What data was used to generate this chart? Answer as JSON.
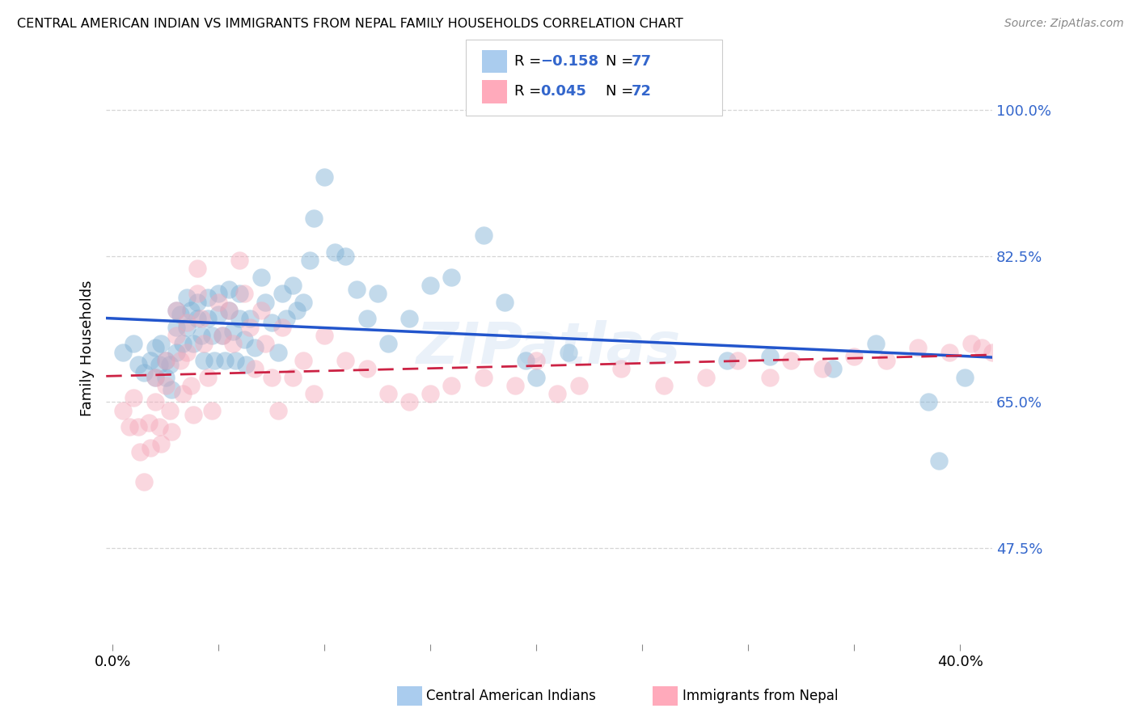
{
  "title": "CENTRAL AMERICAN INDIAN VS IMMIGRANTS FROM NEPAL FAMILY HOUSEHOLDS CORRELATION CHART",
  "source": "Source: ZipAtlas.com",
  "ylabel": "Family Households",
  "ytick_values": [
    0.475,
    0.65,
    0.825,
    1.0
  ],
  "ytick_labels": [
    "47.5%",
    "65.0%",
    "82.5%",
    "100.0%"
  ],
  "xtick_values": [
    0.0,
    0.05,
    0.1,
    0.15,
    0.2,
    0.25,
    0.3,
    0.35,
    0.4
  ],
  "xtick_labels_visible": [
    "0.0%",
    "",
    "",
    "",
    "",
    "",
    "",
    "",
    "40.0%"
  ],
  "xlim": [
    -0.003,
    0.415
  ],
  "ylim": [
    0.36,
    1.07
  ],
  "blue_r": "-0.158",
  "blue_n": "77",
  "pink_r": "0.045",
  "pink_n": "72",
  "blue_scatter_color": "#7BAFD4",
  "pink_scatter_color": "#F4A7B9",
  "blue_line_color": "#2255CC",
  "pink_line_color": "#CC2244",
  "watermark_color": "#C5D8EE",
  "grid_color": "#CCCCCC",
  "blue_x": [
    0.005,
    0.01,
    0.012,
    0.015,
    0.018,
    0.02,
    0.02,
    0.022,
    0.023,
    0.025,
    0.025,
    0.027,
    0.028,
    0.03,
    0.03,
    0.03,
    0.032,
    0.033,
    0.035,
    0.035,
    0.037,
    0.038,
    0.04,
    0.04,
    0.042,
    0.043,
    0.045,
    0.045,
    0.047,
    0.048,
    0.05,
    0.05,
    0.052,
    0.053,
    0.055,
    0.055,
    0.057,
    0.058,
    0.06,
    0.06,
    0.062,
    0.063,
    0.065,
    0.067,
    0.07,
    0.072,
    0.075,
    0.078,
    0.08,
    0.082,
    0.085,
    0.087,
    0.09,
    0.093,
    0.095,
    0.1,
    0.105,
    0.11,
    0.115,
    0.12,
    0.125,
    0.13,
    0.14,
    0.15,
    0.16,
    0.175,
    0.185,
    0.195,
    0.2,
    0.215,
    0.29,
    0.31,
    0.34,
    0.36,
    0.385,
    0.39,
    0.402
  ],
  "blue_y": [
    0.71,
    0.72,
    0.695,
    0.685,
    0.7,
    0.715,
    0.68,
    0.695,
    0.72,
    0.7,
    0.68,
    0.695,
    0.665,
    0.76,
    0.74,
    0.71,
    0.755,
    0.72,
    0.775,
    0.74,
    0.76,
    0.72,
    0.77,
    0.75,
    0.73,
    0.7,
    0.775,
    0.75,
    0.73,
    0.7,
    0.78,
    0.755,
    0.73,
    0.7,
    0.785,
    0.76,
    0.735,
    0.7,
    0.78,
    0.75,
    0.725,
    0.695,
    0.75,
    0.715,
    0.8,
    0.77,
    0.745,
    0.71,
    0.78,
    0.75,
    0.79,
    0.76,
    0.77,
    0.82,
    0.87,
    0.92,
    0.83,
    0.825,
    0.785,
    0.75,
    0.78,
    0.72,
    0.75,
    0.79,
    0.8,
    0.85,
    0.77,
    0.7,
    0.68,
    0.71,
    0.7,
    0.705,
    0.69,
    0.72,
    0.65,
    0.58,
    0.68
  ],
  "pink_x": [
    0.005,
    0.008,
    0.01,
    0.012,
    0.013,
    0.015,
    0.017,
    0.018,
    0.02,
    0.02,
    0.022,
    0.023,
    0.025,
    0.025,
    0.027,
    0.028,
    0.03,
    0.03,
    0.032,
    0.033,
    0.035,
    0.035,
    0.037,
    0.038,
    0.04,
    0.04,
    0.042,
    0.043,
    0.045,
    0.047,
    0.05,
    0.052,
    0.055,
    0.057,
    0.06,
    0.062,
    0.065,
    0.067,
    0.07,
    0.072,
    0.075,
    0.078,
    0.08,
    0.085,
    0.09,
    0.095,
    0.1,
    0.11,
    0.12,
    0.13,
    0.14,
    0.15,
    0.16,
    0.175,
    0.19,
    0.2,
    0.21,
    0.22,
    0.24,
    0.26,
    0.28,
    0.295,
    0.31,
    0.32,
    0.335,
    0.35,
    0.365,
    0.38,
    0.395,
    0.405,
    0.41,
    0.415
  ],
  "pink_y": [
    0.64,
    0.62,
    0.655,
    0.62,
    0.59,
    0.555,
    0.625,
    0.595,
    0.68,
    0.65,
    0.62,
    0.6,
    0.7,
    0.67,
    0.64,
    0.615,
    0.76,
    0.73,
    0.7,
    0.66,
    0.745,
    0.71,
    0.67,
    0.635,
    0.81,
    0.78,
    0.75,
    0.72,
    0.68,
    0.64,
    0.77,
    0.73,
    0.76,
    0.72,
    0.82,
    0.78,
    0.74,
    0.69,
    0.76,
    0.72,
    0.68,
    0.64,
    0.74,
    0.68,
    0.7,
    0.66,
    0.73,
    0.7,
    0.69,
    0.66,
    0.65,
    0.66,
    0.67,
    0.68,
    0.67,
    0.7,
    0.66,
    0.67,
    0.69,
    0.67,
    0.68,
    0.7,
    0.68,
    0.7,
    0.69,
    0.705,
    0.7,
    0.715,
    0.71,
    0.72,
    0.715,
    0.71
  ]
}
